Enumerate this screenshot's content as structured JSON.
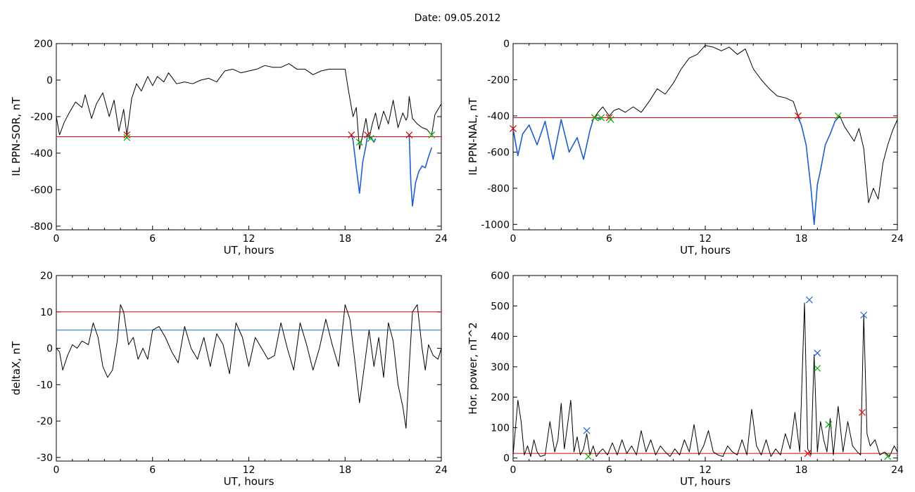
{
  "page": {
    "title": "Date:  09.05.2012"
  },
  "chart_data": [
    {
      "type": "line",
      "title": "",
      "xlabel": "UT, hours",
      "ylabel": "IL PPN-SOR, nT",
      "xlim": [
        0,
        24
      ],
      "ylim": [
        -820,
        200
      ],
      "xticks": [
        0,
        6,
        12,
        18,
        24
      ],
      "yticks": [
        200,
        0,
        -200,
        -400,
        -600,
        -800
      ],
      "grid": false,
      "threshold_lines": [
        {
          "value": -310,
          "color": "#e00000"
        }
      ],
      "series": [
        {
          "color": "#000000",
          "x": [
            0,
            0.2,
            0.5,
            0.8,
            1.2,
            1.6,
            1.8,
            2.2,
            2.5,
            2.9,
            3.3,
            3.6,
            3.9,
            4.2,
            4.4,
            4.7,
            5.0,
            5.3,
            5.7,
            6.0,
            6.3,
            6.7,
            7.0,
            7.5,
            8.0,
            8.5,
            9.0,
            9.5,
            10.0,
            10.5,
            11.0,
            11.5,
            12.0,
            12.5,
            13.0,
            13.5,
            14.0,
            14.5,
            15.0,
            15.5,
            16.0,
            16.5,
            17.0,
            17.5,
            18.0,
            18.2,
            18.5,
            18.7,
            18.9,
            19.1,
            19.3,
            19.5,
            19.7,
            19.9,
            20.1,
            20.4,
            20.7,
            21.0,
            21.3,
            21.6,
            21.8,
            21.9,
            22.0,
            22.2,
            22.5,
            22.8,
            23.1,
            23.4,
            23.6,
            23.8,
            24.0
          ],
          "y": [
            -200,
            -300,
            -230,
            -180,
            -120,
            -150,
            -80,
            -210,
            -130,
            -70,
            -200,
            -110,
            -280,
            -160,
            -300,
            -100,
            -20,
            -60,
            20,
            -30,
            20,
            -10,
            40,
            -20,
            -10,
            -20,
            0,
            10,
            -10,
            50,
            60,
            40,
            50,
            60,
            80,
            70,
            70,
            90,
            60,
            60,
            30,
            50,
            60,
            60,
            60,
            -50,
            -200,
            -150,
            -380,
            -300,
            -210,
            -320,
            -240,
            -180,
            -270,
            -170,
            -240,
            -110,
            -260,
            -180,
            -220,
            -200,
            -90,
            -210,
            -240,
            -260,
            -270,
            -300,
            -190,
            -160,
            -130
          ]
        },
        {
          "color": "#1f5fd0",
          "segments": [
            {
              "x": [
                18.4,
                18.5,
                18.7,
                18.9,
                19.1,
                19.3,
                19.4
              ],
              "y": [
                -300,
                -330,
                -480,
                -620,
                -450,
                -360,
                -300
              ]
            },
            {
              "x": [
                19.6,
                19.8,
                19.9
              ],
              "y": [
                -310,
                -340,
                -320
              ]
            },
            {
              "x": [
                22.0,
                22.1,
                22.2,
                22.4,
                22.6,
                22.8,
                23.0,
                23.2,
                23.4
              ],
              "y": [
                -300,
                -560,
                -690,
                -560,
                -500,
                -470,
                -480,
                -420,
                -370
              ]
            }
          ]
        }
      ],
      "markers": [
        {
          "color": "#e00000",
          "x": [
            4.4,
            18.4,
            19.4,
            22.0
          ],
          "y": [
            -300,
            -300,
            -300,
            -300
          ]
        },
        {
          "color": "#00b000",
          "x": [
            4.4,
            18.9,
            19.6,
            23.4
          ],
          "y": [
            -315,
            -340,
            -320,
            -300
          ]
        }
      ]
    },
    {
      "type": "line",
      "title": "",
      "xlabel": "UT, hours",
      "ylabel": "IL PPN-NAL, nT",
      "xlim": [
        0,
        24
      ],
      "ylim": [
        -1030,
        0
      ],
      "xticks": [
        0,
        6,
        12,
        18,
        24
      ],
      "yticks": [
        0,
        -200,
        -400,
        -600,
        -800,
        -1000
      ],
      "grid": false,
      "threshold_lines": [
        {
          "value": -410,
          "color": "#e00000"
        }
      ],
      "series": [
        {
          "color": "#000000",
          "x": [
            0,
            0.3,
            0.6,
            1.0,
            1.5,
            2.0,
            2.5,
            3.0,
            3.5,
            4.0,
            4.4,
            4.8,
            5.0,
            5.3,
            5.6,
            6.0,
            6.3,
            6.6,
            7.0,
            7.5,
            8.0,
            8.5,
            9.0,
            9.5,
            10.0,
            10.5,
            11.0,
            11.5,
            12.0,
            12.5,
            13.0,
            13.5,
            14.0,
            14.5,
            15.0,
            15.5,
            16.0,
            16.5,
            17.0,
            17.5,
            17.8,
            18.0,
            18.3,
            18.6,
            18.8,
            19.0,
            19.2,
            19.5,
            19.8,
            20.1,
            20.4,
            20.7,
            21.0,
            21.3,
            21.6,
            21.9,
            22.2,
            22.5,
            22.8,
            23.1,
            23.4,
            23.7,
            24.0
          ],
          "y": [
            -480,
            -620,
            -500,
            -450,
            -560,
            -430,
            -640,
            -420,
            -600,
            -520,
            -640,
            -480,
            -420,
            -380,
            -350,
            -400,
            -370,
            -360,
            -380,
            -350,
            -380,
            -320,
            -250,
            -280,
            -220,
            -140,
            -80,
            -60,
            -10,
            -20,
            -40,
            -20,
            -60,
            -30,
            -140,
            -200,
            -250,
            -290,
            -300,
            -320,
            -400,
            -450,
            -560,
            -800,
            -1000,
            -780,
            -700,
            -560,
            -500,
            -430,
            -400,
            -460,
            -500,
            -540,
            -470,
            -580,
            -880,
            -800,
            -860,
            -660,
            -560,
            -480,
            -420
          ]
        },
        {
          "color": "#1f5fd0",
          "segments": [
            {
              "x": [
                0,
                0.3,
                0.6,
                1.0,
                1.5,
                2.0,
                2.5,
                3.0,
                3.5,
                4.0,
                4.4,
                4.8,
                5.0
              ],
              "y": [
                -470,
                -620,
                -500,
                -450,
                -560,
                -430,
                -640,
                -420,
                -600,
                -520,
                -640,
                -480,
                -420
              ]
            },
            {
              "x": [
                5.2,
                5.5
              ],
              "y": [
                -410,
                -420
              ]
            },
            {
              "x": [
                6.0,
                6.1
              ],
              "y": [
                -410,
                -420
              ]
            },
            {
              "x": [
                17.8,
                18.0,
                18.3,
                18.6,
                18.8,
                19.0,
                19.2,
                19.5,
                19.8,
                20.1,
                20.3
              ],
              "y": [
                -410,
                -450,
                -560,
                -800,
                -1000,
                -780,
                -700,
                -560,
                -500,
                -430,
                -410
              ]
            }
          ]
        }
      ],
      "markers": [
        {
          "color": "#e00000",
          "x": [
            0,
            5.1,
            6.0,
            17.8
          ],
          "y": [
            -470,
            -410,
            -410,
            -400
          ]
        },
        {
          "color": "#00b000",
          "x": [
            5.1,
            5.5,
            6.1,
            20.3
          ],
          "y": [
            -410,
            -410,
            -420,
            -400
          ]
        }
      ]
    },
    {
      "type": "line",
      "title": "",
      "xlabel": "UT, hours",
      "ylabel": "deltaX, nT",
      "xlim": [
        0,
        24
      ],
      "ylim": [
        -31,
        20
      ],
      "xticks": [
        0,
        6,
        12,
        18,
        24
      ],
      "yticks": [
        20,
        10,
        0,
        -10,
        -20,
        -30
      ],
      "grid": false,
      "threshold_lines": [
        {
          "value": 10,
          "color": "#e00000"
        },
        {
          "value": 5,
          "color": "#1f77c8"
        }
      ],
      "series": [
        {
          "color": "#000000",
          "x": [
            0,
            0.2,
            0.4,
            0.7,
            1.0,
            1.3,
            1.6,
            2.0,
            2.3,
            2.6,
            2.9,
            3.2,
            3.5,
            3.8,
            4.0,
            4.2,
            4.5,
            4.8,
            5.1,
            5.4,
            5.7,
            6.0,
            6.4,
            6.8,
            7.2,
            7.6,
            8.0,
            8.4,
            8.8,
            9.2,
            9.6,
            10.0,
            10.4,
            10.8,
            11.2,
            11.6,
            12.0,
            12.4,
            12.8,
            13.2,
            13.6,
            14.0,
            14.4,
            14.8,
            15.2,
            15.6,
            16.0,
            16.4,
            16.8,
            17.2,
            17.6,
            18.0,
            18.3,
            18.6,
            18.9,
            19.2,
            19.5,
            19.8,
            20.1,
            20.4,
            20.7,
            21.0,
            21.3,
            21.6,
            21.8,
            22.0,
            22.2,
            22.5,
            22.8,
            23.0,
            23.2,
            23.5,
            23.8,
            24.0
          ],
          "y": [
            0,
            -1,
            -6,
            -2,
            1,
            0,
            2,
            1,
            7,
            3,
            -5,
            -8,
            -6,
            2,
            12,
            10,
            1,
            3,
            -3,
            0,
            -3,
            5,
            6,
            3,
            -1,
            -4,
            6,
            0,
            -3,
            3,
            -5,
            4,
            1,
            -7,
            7,
            3,
            -5,
            3,
            0,
            -3,
            -2,
            7,
            0,
            -6,
            7,
            1,
            -6,
            0,
            8,
            1,
            -5,
            12,
            8,
            -3,
            -15,
            -5,
            5,
            -5,
            3,
            -8,
            7,
            2,
            -10,
            -16,
            -22,
            -5,
            10,
            12,
            0,
            -6,
            1,
            -2,
            -3,
            0
          ]
        }
      ],
      "markers": []
    },
    {
      "type": "line",
      "title": "",
      "xlabel": "UT, hours",
      "ylabel": "Hor. power, nT^2",
      "xlim": [
        0,
        24
      ],
      "ylim": [
        -10,
        600
      ],
      "xticks": [
        0,
        6,
        12,
        18,
        24
      ],
      "yticks": [
        600,
        500,
        400,
        300,
        200,
        100,
        0
      ],
      "grid": false,
      "threshold_lines": [
        {
          "value": 15,
          "color": "#e00000"
        }
      ],
      "series": [
        {
          "color": "#000000",
          "x": [
            0,
            0.3,
            0.5,
            0.7,
            0.9,
            1.1,
            1.3,
            1.5,
            1.7,
            2.0,
            2.3,
            2.6,
            2.8,
            3.0,
            3.2,
            3.4,
            3.6,
            3.8,
            4.0,
            4.2,
            4.4,
            4.6,
            4.8,
            5.0,
            5.2,
            5.4,
            5.6,
            5.9,
            6.2,
            6.5,
            6.8,
            7.1,
            7.4,
            7.7,
            8.0,
            8.3,
            8.6,
            8.9,
            9.2,
            9.5,
            9.8,
            10.1,
            10.4,
            10.7,
            11.0,
            11.3,
            11.6,
            11.9,
            12.2,
            12.5,
            12.8,
            13.1,
            13.4,
            13.7,
            14.0,
            14.3,
            14.6,
            14.9,
            15.2,
            15.5,
            15.8,
            16.1,
            16.4,
            16.7,
            17.0,
            17.3,
            17.6,
            17.9,
            18.2,
            18.4,
            18.6,
            18.8,
            19.0,
            19.2,
            19.4,
            19.6,
            19.8,
            20.0,
            20.3,
            20.6,
            20.9,
            21.2,
            21.5,
            21.7,
            21.9,
            22.1,
            22.3,
            22.6,
            22.9,
            23.2,
            23.5,
            23.8,
            24.0
          ],
          "y": [
            10,
            190,
            120,
            10,
            40,
            5,
            60,
            20,
            5,
            10,
            120,
            20,
            60,
            180,
            30,
            110,
            190,
            20,
            70,
            10,
            30,
            80,
            10,
            40,
            5,
            20,
            30,
            10,
            50,
            10,
            60,
            15,
            40,
            10,
            90,
            20,
            60,
            10,
            40,
            20,
            5,
            30,
            10,
            60,
            20,
            110,
            10,
            40,
            90,
            20,
            10,
            5,
            40,
            20,
            10,
            60,
            10,
            160,
            40,
            10,
            60,
            5,
            30,
            10,
            80,
            30,
            150,
            20,
            510,
            30,
            10,
            340,
            20,
            120,
            60,
            20,
            130,
            10,
            170,
            20,
            120,
            40,
            20,
            10,
            470,
            80,
            40,
            60,
            10,
            20,
            5,
            40,
            20
          ]
        }
      ],
      "markers": [
        {
          "color": "#e00000",
          "x": [
            18.4,
            21.8
          ],
          "y": [
            15,
            150
          ]
        },
        {
          "color": "#00b000",
          "x": [
            4.7,
            19.0,
            19.7,
            23.4
          ],
          "y": [
            5,
            295,
            110,
            5
          ]
        },
        {
          "color": "#1f5fd0",
          "x": [
            4.6,
            18.5,
            19.0,
            21.9
          ],
          "y": [
            90,
            520,
            345,
            470
          ]
        }
      ]
    }
  ]
}
